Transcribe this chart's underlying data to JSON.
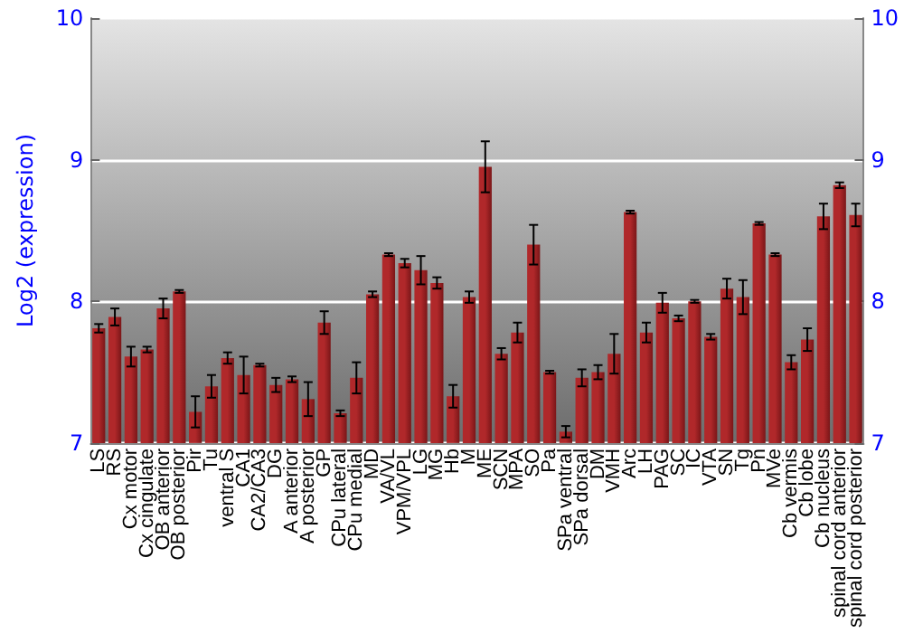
{
  "chart_data": {
    "type": "bar",
    "ylabel": "Log2 (expression)",
    "categories": [
      "LS",
      "RS",
      "Cx motor",
      "Cx cingulate",
      "OB anterior",
      "OB posterior",
      "Pir",
      "Tu",
      "ventral S",
      "CA1",
      "CA2/CA3",
      "DG",
      "A anterior",
      "A posterior",
      "GP",
      "CPu lateral",
      "CPu medial",
      "MD",
      "VA/VL",
      "VPM/VPL",
      "LG",
      "MG",
      "Hb",
      "M",
      "ME",
      "SCN",
      "MPA",
      "SO",
      "Pa",
      "SPa ventral",
      "SPa dorsal",
      "DM",
      "VMH",
      "Arc",
      "LH",
      "PAG",
      "SC",
      "IC",
      "VTA",
      "SN",
      "Tg",
      "Pn",
      "MVe",
      "Cb vermis",
      "Cb lobe",
      "Cb nucleus",
      "spinal cord anterior",
      "spinal cord posterior"
    ],
    "series": [
      {
        "color": "#b0282a",
        "values": [
          7.81,
          7.89,
          7.61,
          7.66,
          7.95,
          8.07,
          7.22,
          7.4,
          7.6,
          7.48,
          7.55,
          7.41,
          7.45,
          7.31,
          7.85,
          7.21,
          7.46,
          8.05,
          8.33,
          8.27,
          8.22,
          8.13,
          7.33,
          8.03,
          8.95,
          7.63,
          7.78,
          8.4,
          7.5,
          7.08,
          7.46,
          7.5,
          7.63,
          8.63,
          7.78,
          7.99,
          7.88,
          8.0,
          7.75,
          8.09,
          8.03,
          8.55,
          8.33,
          7.57,
          7.73,
          8.6,
          8.82,
          8.61
        ],
        "errors": [
          0.03,
          0.06,
          0.07,
          0.02,
          0.07,
          0.01,
          0.11,
          0.08,
          0.04,
          0.13,
          0.01,
          0.05,
          0.02,
          0.12,
          0.08,
          0.02,
          0.11,
          0.02,
          0.01,
          0.03,
          0.1,
          0.04,
          0.08,
          0.04,
          0.18,
          0.04,
          0.07,
          0.14,
          0.01,
          0.04,
          0.06,
          0.05,
          0.14,
          0.01,
          0.07,
          0.07,
          0.02,
          0.01,
          0.02,
          0.07,
          0.12,
          0.01,
          0.01,
          0.05,
          0.08,
          0.09,
          0.02,
          0.08
        ]
      }
    ],
    "ylim": [
      7,
      10
    ],
    "yticks": [
      7,
      8,
      9,
      10
    ],
    "y2lim": [
      7,
      10
    ],
    "y2ticks": [
      7,
      8,
      9,
      10
    ],
    "grid": "y"
  }
}
